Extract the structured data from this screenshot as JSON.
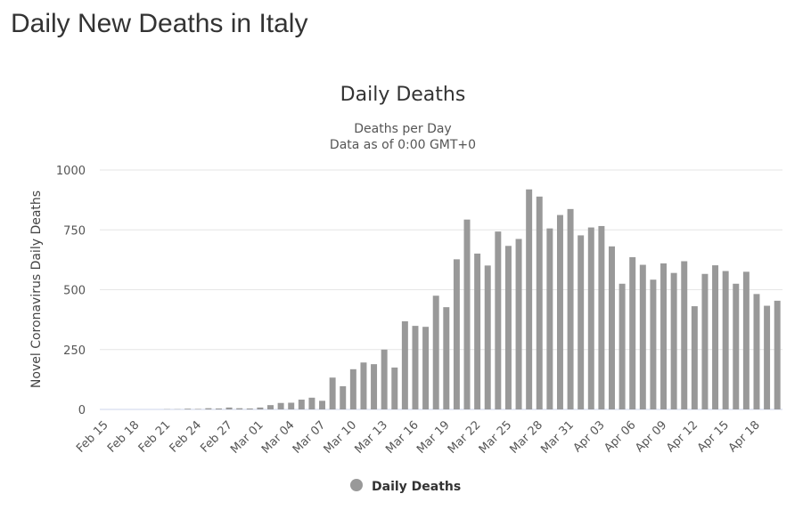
{
  "page": {
    "title": "Daily New Deaths in Italy"
  },
  "chart_data": {
    "type": "bar",
    "title": "Daily Deaths",
    "subtitle_lines": [
      "Deaths per Day",
      "Data as of 0:00 GMT+0"
    ],
    "ylabel": "Novel Coronavirus Daily Deaths",
    "xlabel": "",
    "ylim": [
      0,
      1000
    ],
    "yticks": [
      0,
      250,
      500,
      750,
      1000
    ],
    "grid": true,
    "legend_position": "bottom-center",
    "bar_color": "#999999",
    "categories": [
      "Feb 15",
      "Feb 16",
      "Feb 17",
      "Feb 18",
      "Feb 19",
      "Feb 20",
      "Feb 21",
      "Feb 22",
      "Feb 23",
      "Feb 24",
      "Feb 25",
      "Feb 26",
      "Feb 27",
      "Feb 28",
      "Feb 29",
      "Mar 01",
      "Mar 02",
      "Mar 03",
      "Mar 04",
      "Mar 05",
      "Mar 06",
      "Mar 07",
      "Mar 08",
      "Mar 09",
      "Mar 10",
      "Mar 11",
      "Mar 12",
      "Mar 13",
      "Mar 14",
      "Mar 15",
      "Mar 16",
      "Mar 17",
      "Mar 18",
      "Mar 19",
      "Mar 20",
      "Mar 21",
      "Mar 22",
      "Mar 23",
      "Mar 24",
      "Mar 25",
      "Mar 26",
      "Mar 27",
      "Mar 28",
      "Mar 29",
      "Mar 30",
      "Mar 31",
      "Apr 01",
      "Apr 02",
      "Apr 03",
      "Apr 04",
      "Apr 05",
      "Apr 06",
      "Apr 07",
      "Apr 08",
      "Apr 09",
      "Apr 10",
      "Apr 11",
      "Apr 12",
      "Apr 13",
      "Apr 14",
      "Apr 15",
      "Apr 16",
      "Apr 17",
      "Apr 18",
      "Apr 19",
      "Apr 20"
    ],
    "tick_labels": [
      "Feb 15",
      "Feb 18",
      "Feb 21",
      "Feb 24",
      "Feb 27",
      "Mar 01",
      "Mar 04",
      "Mar 07",
      "Mar 10",
      "Mar 13",
      "Mar 16",
      "Mar 19",
      "Mar 22",
      "Mar 25",
      "Mar 28",
      "Mar 31",
      "Apr 03",
      "Apr 06",
      "Apr 09",
      "Apr 12",
      "Apr 15",
      "Apr 18"
    ],
    "series": [
      {
        "name": "Daily Deaths",
        "values": [
          0,
          0,
          0,
          0,
          0,
          0,
          1,
          1,
          3,
          2,
          5,
          4,
          8,
          5,
          4,
          8,
          18,
          27,
          28,
          41,
          49,
          36,
          133,
          97,
          168,
          196,
          189,
          250,
          175,
          368,
          349,
          345,
          475,
          427,
          627,
          793,
          651,
          601,
          743,
          683,
          712,
          919,
          889,
          756,
          812,
          837,
          727,
          760,
          766,
          681,
          525,
          636,
          604,
          542,
          610,
          570,
          619,
          431,
          566,
          602,
          578,
          525,
          575,
          482,
          433,
          454
        ]
      }
    ]
  }
}
